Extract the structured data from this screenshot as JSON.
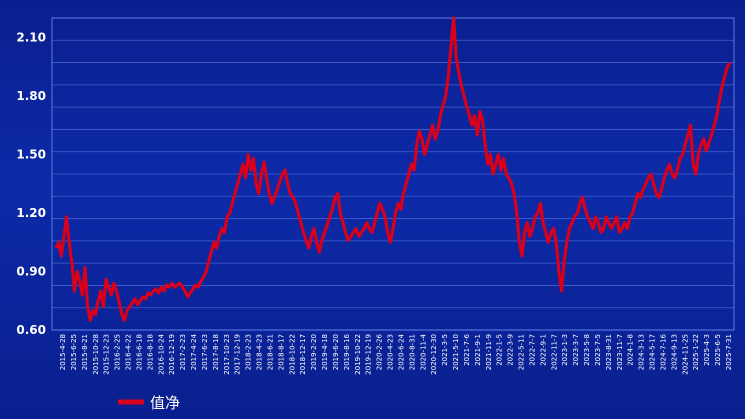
{
  "chart_data": {
    "type": "line",
    "title": "",
    "xlabel": "",
    "ylabel": "",
    "ylim": [
      0.6,
      2.2
    ],
    "yticks": [
      0.6,
      0.9,
      1.2,
      1.5,
      1.8,
      2.1
    ],
    "ytick_labels": [
      "0.60",
      "0.90",
      "1.20",
      "1.50",
      "1.80",
      "2.10"
    ],
    "grid": true,
    "legend_position": "bottom-left",
    "colors": {
      "line": "#d8001a",
      "grid": "#6f8ff0",
      "text": "#ffffff"
    },
    "xticks": [
      "2015-4-28",
      "2015-6-25",
      "2015-8-21",
      "2015-10-28",
      "2015-12-23",
      "2016-2-25",
      "2016-4-22",
      "2016-6-18",
      "2016-8-18",
      "2016-10-24",
      "2016-12-19",
      "2017-2-23",
      "2017-4-24",
      "2017-6-23",
      "2017-8-18",
      "2017-10-23",
      "2017-12-19",
      "2018-2-23",
      "2018-4-23",
      "2018-6-21",
      "2018-8-17",
      "2018-10-22",
      "2018-12-17",
      "2019-2-20",
      "2019-4-18",
      "2019-6-20",
      "2019-8-16",
      "2019-10-22",
      "2019-12-19",
      "2020-2-26",
      "2020-4-23",
      "2020-6-24",
      "2020-8-31",
      "2020-11-4",
      "2020-12-30",
      "2021-3-5",
      "2021-5-10",
      "2021-7-6",
      "2021-9-1",
      "2021-11-9",
      "2022-1-5",
      "2022-3-9",
      "2022-5-11",
      "2022-7-7",
      "2022-9-1",
      "2022-11-7",
      "2023-1-3",
      "2023-3-7",
      "2023-5-8",
      "2023-7-5",
      "2023-8-31",
      "2023-11-7",
      "2024-1-8",
      "2024-3-13",
      "2024-5-17",
      "2024-7-16",
      "2024-9-13",
      "2024-11-25",
      "2025-1-22",
      "2025-4-3",
      "2025-6-5",
      "2025-7-31"
    ],
    "series": [
      {
        "name": "值净",
        "values": [
          1.02,
          1.05,
          0.98,
          1.08,
          1.18,
          1.05,
          0.95,
          0.8,
          0.9,
          0.85,
          0.78,
          0.92,
          0.72,
          0.65,
          0.7,
          0.68,
          0.75,
          0.8,
          0.72,
          0.86,
          0.82,
          0.78,
          0.84,
          0.8,
          0.74,
          0.68,
          0.65,
          0.7,
          0.72,
          0.74,
          0.76,
          0.73,
          0.75,
          0.77,
          0.76,
          0.79,
          0.78,
          0.8,
          0.81,
          0.79,
          0.82,
          0.8,
          0.83,
          0.82,
          0.84,
          0.82,
          0.83,
          0.84,
          0.82,
          0.8,
          0.77,
          0.79,
          0.81,
          0.83,
          0.82,
          0.85,
          0.87,
          0.9,
          0.95,
          1.0,
          1.05,
          1.02,
          1.08,
          1.12,
          1.1,
          1.18,
          1.2,
          1.25,
          1.3,
          1.35,
          1.4,
          1.45,
          1.38,
          1.5,
          1.42,
          1.48,
          1.35,
          1.3,
          1.4,
          1.46,
          1.38,
          1.3,
          1.25,
          1.28,
          1.32,
          1.36,
          1.4,
          1.42,
          1.35,
          1.3,
          1.28,
          1.25,
          1.2,
          1.15,
          1.1,
          1.06,
          1.02,
          1.08,
          1.12,
          1.05,
          1.0,
          1.06,
          1.1,
          1.14,
          1.18,
          1.22,
          1.28,
          1.3,
          1.2,
          1.15,
          1.1,
          1.06,
          1.08,
          1.1,
          1.12,
          1.08,
          1.1,
          1.12,
          1.15,
          1.12,
          1.1,
          1.15,
          1.2,
          1.25,
          1.22,
          1.18,
          1.1,
          1.05,
          1.12,
          1.2,
          1.25,
          1.22,
          1.3,
          1.35,
          1.4,
          1.45,
          1.42,
          1.55,
          1.62,
          1.58,
          1.5,
          1.55,
          1.6,
          1.65,
          1.58,
          1.62,
          1.7,
          1.75,
          1.8,
          1.9,
          2.05,
          2.2,
          2.0,
          1.92,
          1.85,
          1.8,
          1.75,
          1.7,
          1.65,
          1.7,
          1.6,
          1.72,
          1.68,
          1.55,
          1.45,
          1.5,
          1.4,
          1.45,
          1.5,
          1.42,
          1.48,
          1.4,
          1.38,
          1.35,
          1.3,
          1.2,
          1.05,
          0.98,
          1.1,
          1.15,
          1.08,
          1.12,
          1.18,
          1.2,
          1.25,
          1.15,
          1.1,
          1.05,
          1.1,
          1.12,
          1.05,
          0.9,
          0.8,
          0.95,
          1.05,
          1.12,
          1.15,
          1.18,
          1.2,
          1.25,
          1.28,
          1.22,
          1.18,
          1.15,
          1.12,
          1.18,
          1.15,
          1.1,
          1.12,
          1.18,
          1.15,
          1.12,
          1.15,
          1.18,
          1.1,
          1.12,
          1.15,
          1.12,
          1.18,
          1.2,
          1.25,
          1.3,
          1.28,
          1.32,
          1.35,
          1.38,
          1.4,
          1.35,
          1.3,
          1.28,
          1.32,
          1.38,
          1.42,
          1.45,
          1.4,
          1.38,
          1.42,
          1.48,
          1.5,
          1.55,
          1.6,
          1.65,
          1.45,
          1.4,
          1.5,
          1.55,
          1.58,
          1.52,
          1.56,
          1.6,
          1.65,
          1.7,
          1.78,
          1.85,
          1.9,
          1.95,
          1.97
        ]
      }
    ]
  }
}
